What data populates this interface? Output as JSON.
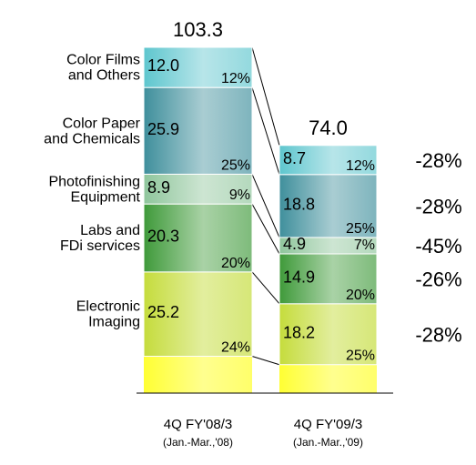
{
  "chart_data": {
    "type": "bar",
    "stacked": true,
    "categories": [
      {
        "label": "4Q FY'08/3",
        "sublabel": "(Jan.-Mar.,'08)",
        "total": "103.3"
      },
      {
        "label": "4Q FY'09/3",
        "sublabel": "(Jan.-Mar.,'09)",
        "total": "74.0"
      }
    ],
    "series": [
      {
        "name": "Electronic Imaging",
        "label_lines": [
          "Electronic",
          "Imaging"
        ],
        "values": [
          25.2,
          18.2
        ],
        "value_labels": [
          "25.2",
          "18.2"
        ],
        "shares": [
          "24%",
          "25%"
        ],
        "change": "-28%",
        "color": "#c5dc3c"
      },
      {
        "name": "Labs and FDi services",
        "label_lines": [
          "Labs and",
          "FDi services"
        ],
        "values": [
          20.3,
          14.9
        ],
        "value_labels": [
          "20.3",
          "14.9"
        ],
        "shares": [
          "20%",
          "20%"
        ],
        "change": "-26%",
        "color": "#3f9a3a"
      },
      {
        "name": "Photofinishing Equipment",
        "label_lines": [
          "Photofinishing",
          "Equipment"
        ],
        "values": [
          8.9,
          4.9
        ],
        "value_labels": [
          "8.9",
          "4.9"
        ],
        "shares": [
          "9%",
          "7%"
        ],
        "change": "-45%",
        "color": "#8fc69c"
      },
      {
        "name": "Color Paper and Chemicals",
        "label_lines": [
          "Color Paper",
          "and Chemicals"
        ],
        "values": [
          25.9,
          18.8
        ],
        "value_labels": [
          "25.9",
          "18.8"
        ],
        "shares": [
          "25%",
          "25%"
        ],
        "change": "-28%",
        "color": "#3f8f9c"
      },
      {
        "name": "Color Films and Others",
        "label_lines": [
          "Color Films",
          "and Others"
        ],
        "values": [
          12.0,
          8.7
        ],
        "value_labels": [
          "12.0",
          "8.7"
        ],
        "shares": [
          "12%",
          "12%"
        ],
        "change": "-28%",
        "color": "#5ec6ce"
      }
    ],
    "base_segment": {
      "color": "#ffff33"
    },
    "ylim": [
      0,
      103.3
    ],
    "grid": false,
    "legend": "left-labels"
  }
}
